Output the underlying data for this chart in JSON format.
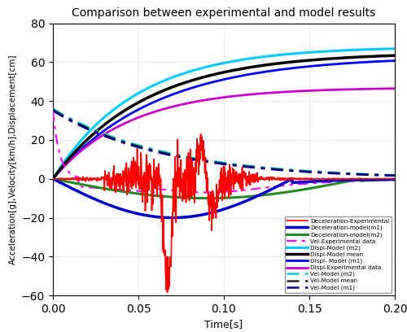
{
  "title": "Comparison between experimental and model results",
  "xlabel": "Time[s]",
  "ylabel": "Acceleration[g],Velocity[km/h],Displacement[cm]",
  "xlim": [
    0,
    0.2
  ],
  "ylim": [
    -60,
    80
  ],
  "yticks": [
    -60,
    -40,
    -20,
    0,
    20,
    40,
    60,
    80
  ],
  "xticks": [
    0,
    0.05,
    0.1,
    0.15,
    0.2
  ],
  "background_color": "#ffffff",
  "legend_entries": [
    "Deceleration-Experimental",
    "Deceleration-model(m1)",
    "Deceleration-model(m2)",
    "Vel-Experimental data",
    "Displ-Experimental data",
    "Vel-Model (m1)",
    "Displ- Model (m1)",
    "Vel-Model (m2)",
    "Displ-Model (m2)",
    "Vel-Model mean",
    "Displ-Model mean"
  ],
  "colors": {
    "decel_exp": "#FF0000",
    "decel_m1": "#0000CD",
    "decel_m2": "#228B22",
    "vel_exp": "#FF00FF",
    "displ_exp": "#CC00CC",
    "vel_m1": "#00008B",
    "displ_m1": "#0000FF",
    "vel_m2": "#00CCCC",
    "displ_m2": "#00CCFF",
    "vel_mean": "#222222",
    "displ_mean": "#000000"
  }
}
